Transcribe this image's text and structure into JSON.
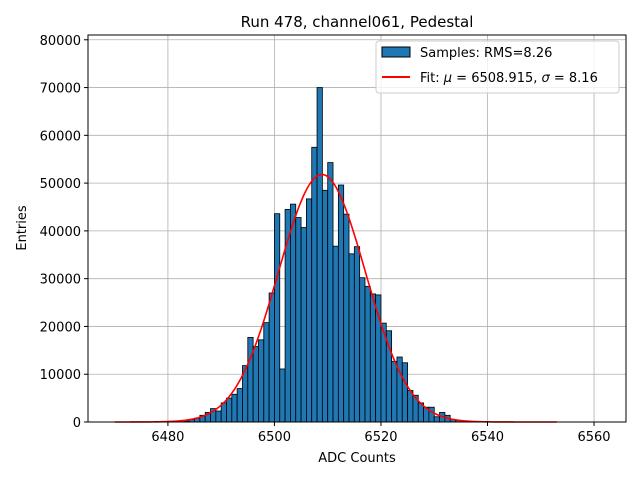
{
  "chart_data": {
    "type": "bar",
    "title": "Run 478, channel061, Pedestal",
    "xlabel": "ADC Counts",
    "ylabel": "Entries",
    "xlim": [
      6465,
      6566
    ],
    "ylim": [
      0,
      81000
    ],
    "xticks": [
      6480,
      6500,
      6520,
      6540,
      6560
    ],
    "yticks": [
      0,
      10000,
      20000,
      30000,
      40000,
      50000,
      60000,
      70000,
      80000
    ],
    "grid": true,
    "legend_position": "top-right",
    "histogram": {
      "name": "Samples: RMS=8.26",
      "color": "#1f77b4",
      "edgecolor": "#000000",
      "bin_width": 1,
      "bin_start": 6483,
      "values": [
        200,
        500,
        800,
        1400,
        2000,
        2800,
        2300,
        4000,
        5000,
        5800,
        7000,
        11800,
        17700,
        15800,
        17200,
        20800,
        27000,
        43600,
        11100,
        44500,
        45600,
        42800,
        40700,
        46700,
        57500,
        70000,
        48500,
        54300,
        36800,
        49600,
        43500,
        35200,
        36700,
        30200,
        28400,
        26800,
        26600,
        20700,
        19100,
        12700,
        13600,
        12400,
        6600,
        5600,
        4000,
        3100,
        3100,
        1100,
        2000,
        1400,
        500,
        300
      ]
    },
    "fit": {
      "name": "Fit: $\\mu$ = 6508.915, $\\sigma$ = 8.16",
      "legend_prefix": "Fit: ",
      "legend_mu": "μ",
      "legend_mid": " = 6508.915, ",
      "legend_sigma": "σ",
      "legend_suffix": " = 8.16",
      "color": "#ff0000",
      "mu": 6508.915,
      "sigma": 8.16,
      "amplitude": 51800,
      "x_range": [
        6470,
        6553
      ]
    }
  }
}
